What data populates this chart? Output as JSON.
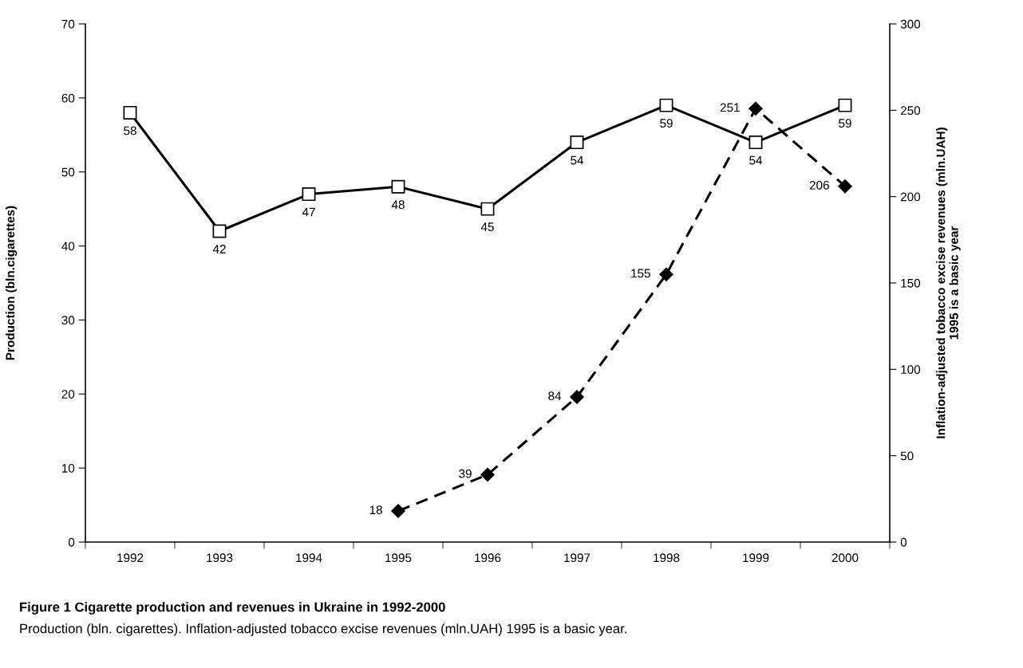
{
  "chart_data": {
    "type": "line",
    "title": "Figure 1 Cigarette production and revenues in Ukraine in 1992-2000",
    "ylabel": "Production (bln.cigarettes)",
    "y2label": "Inflation-adjusted tobacco excise revenues (mln.UAH)\n1995 is a basic year",
    "annotations": [
      "Production (bln. cigarettes). Inflation-adjusted tobacco excise revenues (mln.UAH) 1995 is a basic year."
    ],
    "categories": [
      "1992",
      "1993",
      "1994",
      "1995",
      "1996",
      "1997",
      "1998",
      "1999",
      "2000"
    ],
    "series": [
      {
        "color": "#000000",
        "values": [
          58,
          42,
          47,
          48,
          45,
          54,
          59,
          54,
          59
        ],
        "marker": "square",
        "line_style": "solid"
      },
      {
        "color": "#000000",
        "values": [
          null,
          null,
          null,
          18,
          39,
          84,
          155,
          251,
          206
        ],
        "axis": "y2",
        "marker": "diamond",
        "line_style": "dashed"
      }
    ],
    "ylim": [
      0,
      70
    ],
    "yticks": [
      0,
      10,
      20,
      30,
      40,
      50,
      60,
      70
    ],
    "y2lim": [
      0,
      300
    ],
    "y2ticks": [
      0,
      50,
      100,
      150,
      200,
      250,
      300
    ],
    "data_labels": true,
    "grid": false,
    "legend": false
  }
}
